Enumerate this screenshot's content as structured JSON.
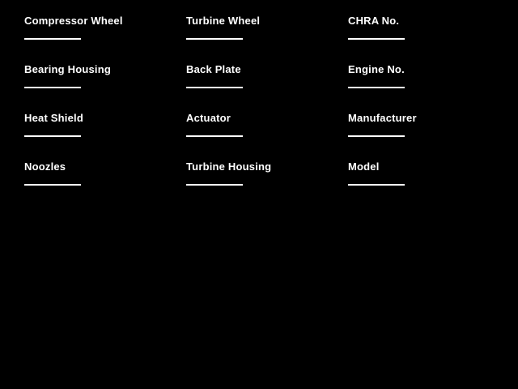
{
  "page": {
    "background_color": "#000000",
    "text_color": "#ffffff"
  },
  "form": {
    "fields": [
      {
        "label": "Compressor Wheel",
        "value": ""
      },
      {
        "label": "Turbine Wheel",
        "value": ""
      },
      {
        "label": "CHRA No.",
        "value": ""
      },
      {
        "label": "Bearing Housing",
        "value": ""
      },
      {
        "label": "Back Plate",
        "value": ""
      },
      {
        "label": "Engine No.",
        "value": ""
      },
      {
        "label": "Heat Shield",
        "value": ""
      },
      {
        "label": "Actuator",
        "value": ""
      },
      {
        "label": "Manufacturer",
        "value": ""
      },
      {
        "label": "Noozles",
        "value": ""
      },
      {
        "label": "Turbine Housing",
        "value": ""
      },
      {
        "label": "Model",
        "value": ""
      }
    ]
  }
}
